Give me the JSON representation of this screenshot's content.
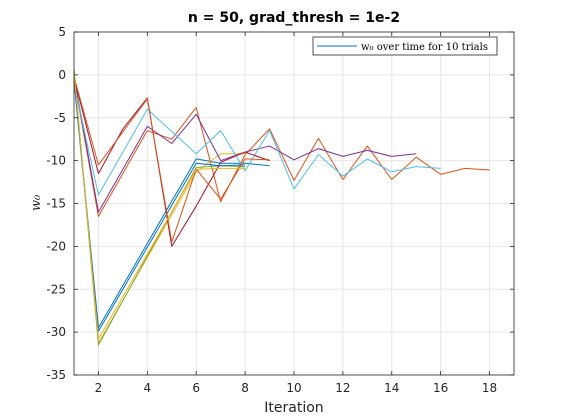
{
  "chart_data": {
    "type": "line",
    "title": "n = 50, grad_thresh = 1e-2",
    "xlabel": "Iteration",
    "ylabel": "w₀",
    "xlim": [
      1,
      19
    ],
    "ylim": [
      -35,
      5
    ],
    "xticks": [
      2,
      4,
      6,
      8,
      10,
      12,
      14,
      16,
      18
    ],
    "yticks": [
      5,
      0,
      -5,
      -10,
      -15,
      -20,
      -25,
      -30,
      -35
    ],
    "grid": true,
    "legend": {
      "text": "w₀ over time for 10 trials",
      "placement": "top-right",
      "color": "#0072BD"
    },
    "series": [
      {
        "color": "#0072BD",
        "x": [
          1,
          2,
          6,
          7,
          8,
          9
        ],
        "y": [
          -0.5,
          -29.5,
          -9.8,
          -10.3,
          -10.3,
          -10.6
        ]
      },
      {
        "color": "#D95319",
        "x": [
          1,
          2,
          3,
          4,
          5,
          6,
          7,
          8,
          9,
          10,
          11,
          12,
          13,
          14,
          15,
          16,
          17,
          18
        ],
        "y": [
          -0.5,
          -16.5,
          -11.5,
          -6.5,
          -7.5,
          -3.8,
          -14.8,
          -9.3,
          -6.3,
          -12.3,
          -7.4,
          -12.2,
          -8.3,
          -12.2,
          -9.6,
          -11.6,
          -10.9,
          -11.1
        ]
      },
      {
        "color": "#EDB120",
        "x": [
          1,
          2,
          6,
          7,
          8
        ],
        "y": [
          0.5,
          -31.3,
          -11.3,
          -9.2,
          -9.2
        ]
      },
      {
        "color": "#7E2F8E",
        "x": [
          1,
          2,
          4,
          5,
          6,
          7,
          8,
          9,
          10,
          11,
          12,
          13,
          14,
          15
        ],
        "y": [
          -0.2,
          -16.0,
          -6.0,
          -8.0,
          -4.6,
          -10.0,
          -9.0,
          -8.3,
          -9.9,
          -8.6,
          -9.5,
          -8.8,
          -9.5,
          -9.2
        ]
      },
      {
        "color": "#77AC30",
        "x": [
          1,
          2,
          6,
          7,
          8
        ],
        "y": [
          0.7,
          -31.5,
          -10.8,
          -10.6,
          -10.7
        ]
      },
      {
        "color": "#4DBEEE",
        "x": [
          1,
          2,
          4,
          6,
          7,
          8,
          9,
          10,
          11,
          12,
          13,
          14,
          15,
          16
        ],
        "y": [
          -1.0,
          -14.0,
          -4.0,
          -9.2,
          -6.5,
          -11.2,
          -6.5,
          -13.3,
          -9.3,
          -11.8,
          -9.8,
          -11.3,
          -10.7,
          -10.9
        ]
      },
      {
        "color": "#A2142F",
        "x": [
          1,
          2,
          3,
          4,
          5,
          6,
          7,
          8,
          9
        ],
        "y": [
          -0.3,
          -11.5,
          -6.3,
          -2.7,
          -20.0,
          -15.3,
          -10.2,
          -9.0,
          -10.0
        ]
      },
      {
        "color": "#0072BD",
        "x": [
          1,
          2,
          6,
          7,
          8
        ],
        "y": [
          -0.7,
          -29.9,
          -10.3,
          -10.6,
          -10.5
        ]
      },
      {
        "color": "#D95319",
        "x": [
          1,
          2,
          4,
          5,
          6,
          7,
          8,
          9
        ],
        "y": [
          -0.2,
          -10.5,
          -2.8,
          -19.5,
          -11.0,
          -14.5,
          -9.8,
          -9.9
        ]
      },
      {
        "color": "#EDB120",
        "x": [
          1,
          2,
          6,
          7,
          8
        ],
        "y": [
          0.3,
          -30.8,
          -11.0,
          -10.9,
          -10.9
        ]
      }
    ]
  }
}
